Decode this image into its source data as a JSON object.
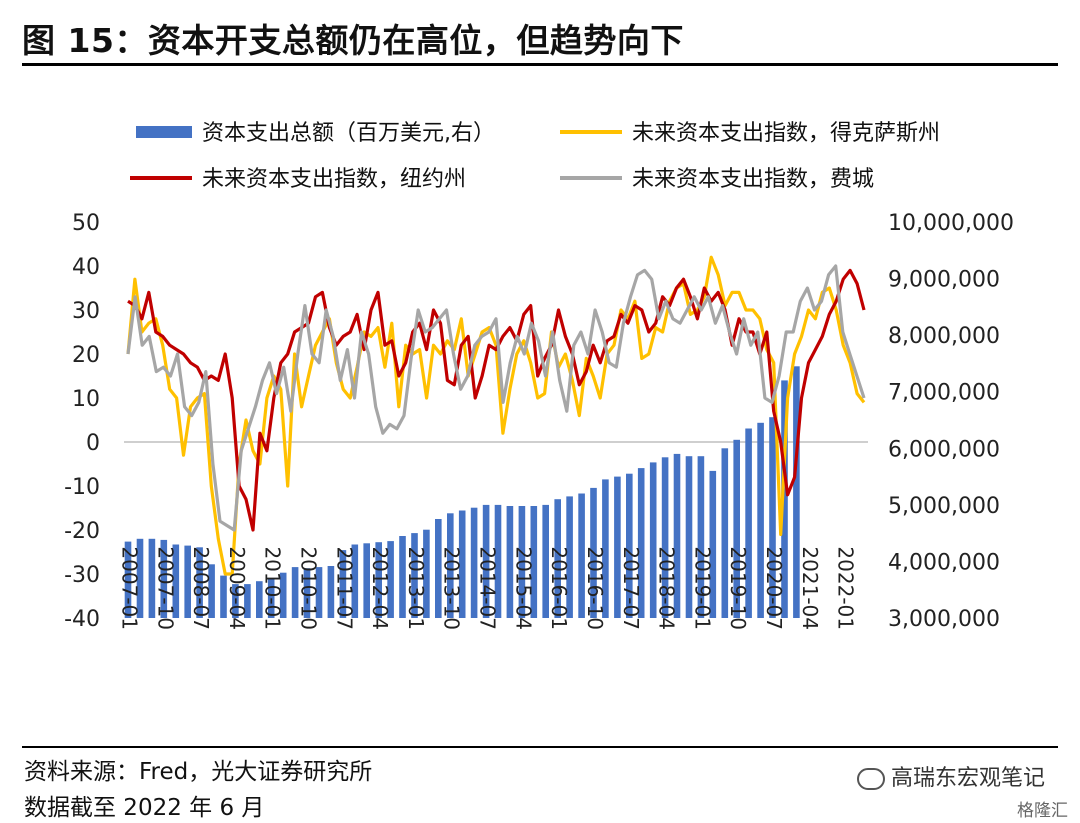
{
  "title": "图 15：资本开支总额仍在高位，但趋势向下",
  "footer": {
    "source": "资料来源：Fred，光大证券研究所",
    "date": "数据截至 2022 年 6 月"
  },
  "watermark": {
    "account": "高瑞东宏观笔记",
    "brand": "格隆汇"
  },
  "chart_data": {
    "type": "bar+line",
    "legend": [
      {
        "name": "资本支出总额（百万美元,右）",
        "kind": "bar",
        "color": "#4472C4"
      },
      {
        "name": "未来资本支出指数，得克萨斯州",
        "kind": "line",
        "color": "#FFC000"
      },
      {
        "name": "未来资本支出指数，纽约州",
        "kind": "line",
        "color": "#C00000"
      },
      {
        "name": "未来资本支出指数，费城",
        "kind": "line",
        "color": "#A6A6A6"
      }
    ],
    "left_axis": {
      "min": -40,
      "max": 50,
      "step": 10,
      "ticks": [
        "50",
        "40",
        "30",
        "20",
        "10",
        "0",
        "-10",
        "-20",
        "-30",
        "-40"
      ]
    },
    "right_axis": {
      "min": 3000000,
      "max": 10000000,
      "step": 1000000,
      "ticks": [
        "10,000,000",
        "9,000,000",
        "8,000,000",
        "7,000,000",
        "6,000,000",
        "5,000,000",
        "4,000,000",
        "3,000,000"
      ]
    },
    "x_start": "2007-01",
    "x_end": "2022-06",
    "x_ticks": [
      "2007-01",
      "2007-10",
      "2008-07",
      "2009-04",
      "2010-01",
      "2010-10",
      "2011-07",
      "2012-04",
      "2013-01",
      "2013-10",
      "2014-07",
      "2015-04",
      "2016-01",
      "2016-10",
      "2017-07",
      "2018-04",
      "2019-01",
      "2019-10",
      "2020-07",
      "2021-04",
      "2022-01"
    ],
    "bars": {
      "name": "资本支出总额（百万美元,右）",
      "frequency": "quarterly",
      "start": "2007-01",
      "values": [
        4350000,
        4400000,
        4400000,
        4380000,
        4300000,
        4280000,
        4250000,
        3950000,
        3750000,
        3600000,
        3600000,
        3650000,
        3700000,
        3800000,
        3900000,
        3880000,
        3900000,
        3920000,
        4200000,
        4300000,
        4320000,
        4340000,
        4360000,
        4450000,
        4500000,
        4560000,
        4750000,
        4850000,
        4900000,
        4950000,
        5000000,
        5000000,
        4980000,
        4980000,
        4980000,
        5000000,
        5100000,
        5150000,
        5200000,
        5300000,
        5450000,
        5500000,
        5550000,
        5650000,
        5750000,
        5840000,
        5900000,
        5860000,
        5860000,
        5600000,
        6000000,
        6150000,
        6350000,
        6450000,
        6550000,
        7200000,
        7450000
      ]
    },
    "series": [
      {
        "name": "未来资本支出指数，得克萨斯州",
        "color": "#FFC000",
        "values": [
          20,
          37,
          25,
          27,
          28,
          22,
          12,
          10,
          -3,
          8,
          10,
          11,
          -10,
          -22,
          -30,
          -30,
          -5,
          5,
          -2,
          -5,
          10,
          15,
          12,
          -10,
          20,
          8,
          15,
          22,
          25,
          28,
          18,
          12,
          10,
          17,
          25,
          24,
          26,
          17,
          27,
          8,
          22,
          20,
          21,
          10,
          22,
          20,
          23,
          21,
          28,
          15,
          20,
          25,
          26,
          22,
          2,
          12,
          20,
          23,
          18,
          10,
          11,
          25,
          17,
          20,
          14,
          6,
          19,
          15,
          10,
          20,
          22,
          30,
          28,
          32,
          19,
          20,
          26,
          25,
          32,
          35,
          36,
          29,
          30,
          33,
          42,
          38,
          31,
          34,
          34,
          30,
          30,
          28,
          21,
          18,
          -21,
          10,
          20,
          24,
          30,
          28,
          34,
          35,
          30,
          22,
          18,
          11,
          9
        ]
      },
      {
        "name": "未来资本支出指数，纽约州",
        "color": "#C00000",
        "values": [
          32,
          31,
          28,
          34,
          25,
          24,
          22,
          21,
          20,
          18,
          17,
          14,
          15,
          14,
          20,
          10,
          -10,
          -13,
          -20,
          2,
          -2,
          10,
          18,
          20,
          25,
          26,
          27,
          33,
          34,
          26,
          22,
          24,
          25,
          29,
          21,
          30,
          34,
          22,
          23,
          15,
          18,
          25,
          27,
          21,
          30,
          27,
          14,
          13,
          22,
          24,
          10,
          15,
          22,
          21,
          24,
          26,
          23,
          29,
          31,
          15,
          19,
          22,
          30,
          24,
          20,
          13,
          16,
          22,
          18,
          23,
          24,
          29,
          27,
          31,
          30,
          25,
          27,
          33,
          31,
          35,
          37,
          33,
          28,
          35,
          32,
          34,
          30,
          22,
          28,
          25,
          25,
          20,
          25,
          7,
          0,
          -12,
          -8,
          10,
          18,
          21,
          24,
          29,
          32,
          37,
          39,
          36,
          30
        ]
      },
      {
        "name": "未来资本支出指数，费城",
        "color": "#A6A6A6",
        "values": [
          20,
          33,
          22,
          24,
          16,
          17,
          15,
          20,
          8,
          6,
          9,
          16,
          -5,
          -18,
          -19,
          -20,
          -2,
          3,
          8,
          14,
          18,
          11,
          17,
          7,
          20,
          31,
          20,
          18,
          30,
          24,
          14,
          21,
          10,
          25,
          20,
          8,
          2,
          4,
          3,
          6,
          19,
          30,
          25,
          26,
          28,
          30,
          20,
          12,
          15,
          22,
          24,
          25,
          28,
          9,
          18,
          24,
          20,
          27,
          23,
          15,
          25,
          14,
          7,
          22,
          25,
          20,
          30,
          25,
          18,
          17,
          27,
          33,
          38,
          39,
          37,
          28,
          32,
          28,
          27,
          30,
          33,
          30,
          33,
          27,
          31,
          25,
          20,
          28,
          22,
          25,
          10,
          9,
          15,
          25,
          25,
          32,
          35,
          30,
          32,
          38,
          40,
          25,
          20,
          15,
          10
        ]
      }
    ]
  }
}
